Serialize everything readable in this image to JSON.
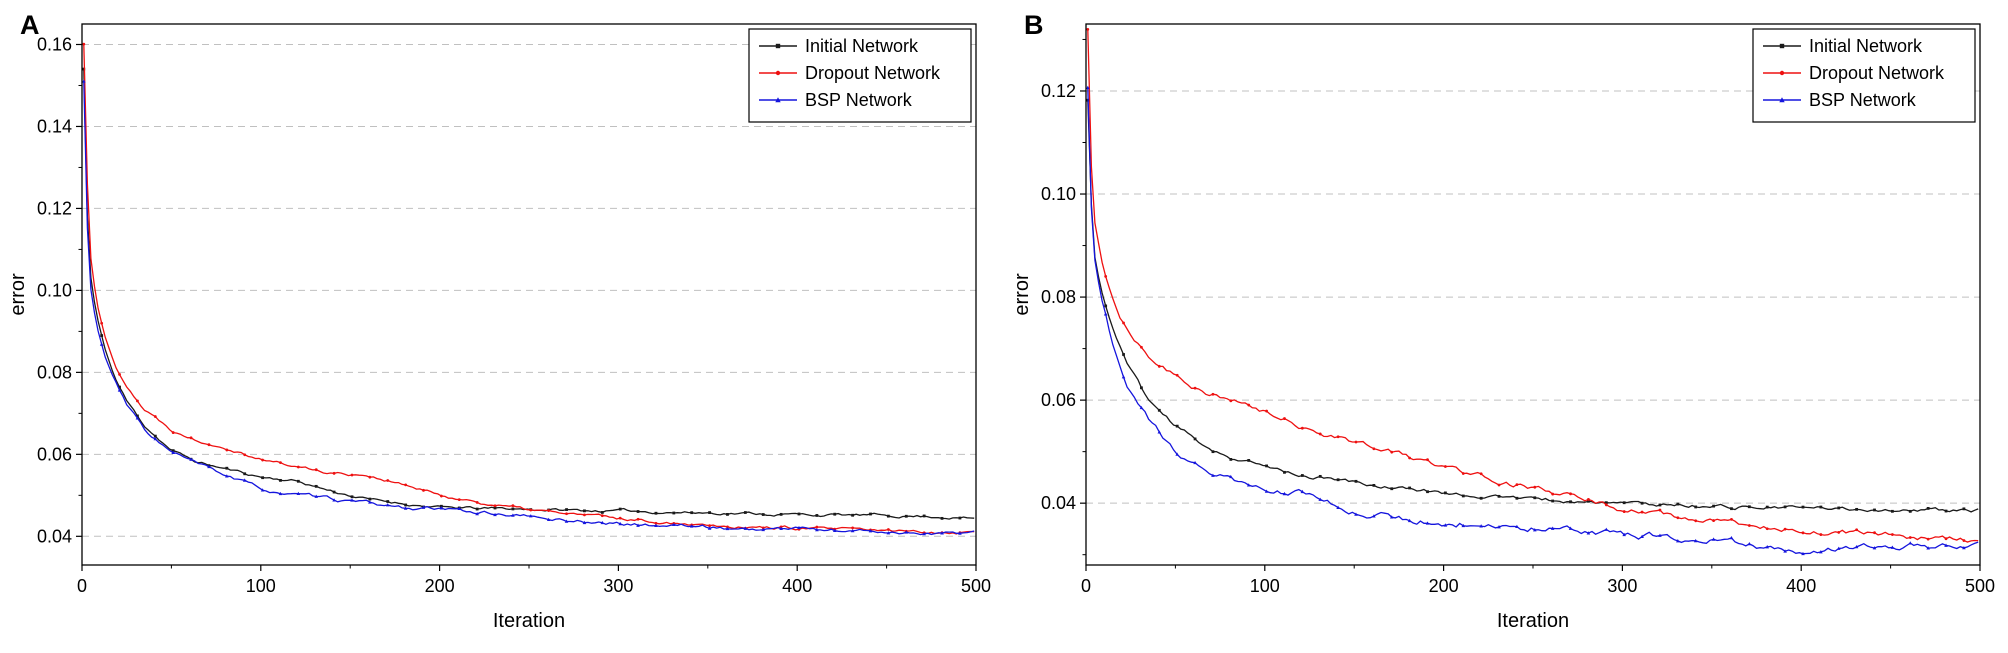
{
  "figure": {
    "background": "#ffffff",
    "panel_labels": [
      "A",
      "B"
    ]
  },
  "chart_data": [
    {
      "type": "line",
      "panel_label": "A",
      "xlabel": "Iteration",
      "ylabel": "error",
      "xlim": [
        0,
        500
      ],
      "ylim": [
        0.033,
        0.165
      ],
      "xticks": [
        0,
        100,
        200,
        300,
        400,
        500
      ],
      "yticks": [
        0.04,
        0.06,
        0.08,
        0.1,
        0.12,
        0.14,
        0.16
      ],
      "grid": "horizontal-dashed",
      "grid_color": "#c0c0c0",
      "legend_position": "top-right",
      "series": [
        {
          "name": "Initial Network",
          "color": "#1a1a1a",
          "marker": "square",
          "seed": 11,
          "noise": 0.00045,
          "x": [
            1,
            3,
            5,
            8,
            12,
            18,
            25,
            35,
            50,
            65,
            80,
            100,
            120,
            140,
            160,
            180,
            200,
            220,
            240,
            260,
            280,
            300,
            320,
            340,
            360,
            380,
            400,
            420,
            440,
            460,
            480,
            500
          ],
          "y": [
            0.154,
            0.118,
            0.103,
            0.094,
            0.087,
            0.079,
            0.073,
            0.067,
            0.061,
            0.058,
            0.0565,
            0.0545,
            0.0535,
            0.051,
            0.049,
            0.048,
            0.047,
            0.0468,
            0.0467,
            0.0465,
            0.0463,
            0.0462,
            0.046,
            0.0458,
            0.0457,
            0.0455,
            0.0453,
            0.0452,
            0.0451,
            0.045,
            0.0448,
            0.0443
          ]
        },
        {
          "name": "Dropout Network",
          "color": "#ee1111",
          "marker": "circle",
          "seed": 22,
          "noise": 0.0005,
          "x": [
            1,
            3,
            5,
            8,
            12,
            18,
            25,
            35,
            50,
            65,
            80,
            100,
            120,
            140,
            160,
            180,
            200,
            220,
            240,
            260,
            280,
            300,
            320,
            340,
            360,
            380,
            400,
            420,
            440,
            460,
            480,
            500
          ],
          "y": [
            0.16,
            0.126,
            0.108,
            0.098,
            0.09,
            0.082,
            0.077,
            0.071,
            0.066,
            0.0635,
            0.062,
            0.059,
            0.057,
            0.0555,
            0.055,
            0.0525,
            0.05,
            0.0485,
            0.047,
            0.046,
            0.0452,
            0.0443,
            0.0437,
            0.0432,
            0.0427,
            0.0422,
            0.042,
            0.0417,
            0.0414,
            0.0412,
            0.0411,
            0.041
          ]
        },
        {
          "name": "BSP Network",
          "color": "#1515dd",
          "marker": "triangle",
          "seed": 33,
          "noise": 0.00055,
          "x": [
            1,
            3,
            5,
            8,
            12,
            18,
            25,
            35,
            50,
            65,
            80,
            100,
            120,
            140,
            160,
            180,
            200,
            220,
            240,
            260,
            280,
            300,
            320,
            340,
            360,
            380,
            400,
            420,
            440,
            460,
            480,
            500
          ],
          "y": [
            0.151,
            0.115,
            0.1,
            0.092,
            0.085,
            0.078,
            0.072,
            0.066,
            0.0605,
            0.0575,
            0.055,
            0.0515,
            0.05,
            0.049,
            0.048,
            0.047,
            0.0465,
            0.046,
            0.0452,
            0.0443,
            0.0437,
            0.043,
            0.0427,
            0.0426,
            0.042,
            0.0417,
            0.042,
            0.0415,
            0.0412,
            0.041,
            0.0408,
            0.0407
          ]
        }
      ]
    },
    {
      "type": "line",
      "panel_label": "B",
      "xlabel": "Iteration",
      "ylabel": "error",
      "xlim": [
        0,
        500
      ],
      "ylim": [
        0.028,
        0.133
      ],
      "xticks": [
        0,
        100,
        200,
        300,
        400,
        500
      ],
      "yticks": [
        0.04,
        0.06,
        0.08,
        0.1,
        0.12
      ],
      "grid": "horizontal-dashed",
      "grid_color": "#c0c0c0",
      "legend_position": "top-right",
      "series": [
        {
          "name": "Initial Network",
          "color": "#1a1a1a",
          "marker": "square",
          "seed": 44,
          "noise": 0.0005,
          "x": [
            1,
            3,
            5,
            8,
            12,
            18,
            25,
            35,
            50,
            65,
            80,
            100,
            120,
            140,
            160,
            180,
            200,
            220,
            240,
            260,
            280,
            300,
            320,
            340,
            360,
            380,
            400,
            420,
            440,
            460,
            480,
            500
          ],
          "y": [
            0.118,
            0.098,
            0.088,
            0.082,
            0.077,
            0.071,
            0.066,
            0.06,
            0.055,
            0.0515,
            0.049,
            0.047,
            0.0455,
            0.0445,
            0.0435,
            0.0428,
            0.042,
            0.0415,
            0.041,
            0.0405,
            0.0402,
            0.0399,
            0.0397,
            0.0396,
            0.0394,
            0.0392,
            0.039,
            0.0389,
            0.0388,
            0.0387,
            0.0386,
            0.0385
          ]
        },
        {
          "name": "Dropout Network",
          "color": "#ee1111",
          "marker": "circle",
          "seed": 55,
          "noise": 0.0007,
          "x": [
            1,
            3,
            5,
            8,
            12,
            18,
            25,
            35,
            50,
            65,
            80,
            100,
            120,
            140,
            160,
            180,
            200,
            220,
            240,
            260,
            280,
            300,
            320,
            340,
            360,
            380,
            400,
            420,
            440,
            460,
            480,
            500
          ],
          "y": [
            0.132,
            0.105,
            0.094,
            0.088,
            0.083,
            0.077,
            0.073,
            0.069,
            0.065,
            0.062,
            0.06,
            0.0575,
            0.055,
            0.053,
            0.051,
            0.049,
            0.047,
            0.0455,
            0.0438,
            0.042,
            0.0405,
            0.039,
            0.0378,
            0.0368,
            0.036,
            0.0355,
            0.035,
            0.0345,
            0.034,
            0.0336,
            0.0331,
            0.0326
          ]
        },
        {
          "name": "BSP Network",
          "color": "#1515dd",
          "marker": "triangle",
          "seed": 66,
          "noise": 0.0008,
          "x": [
            1,
            3,
            5,
            8,
            12,
            18,
            25,
            35,
            50,
            65,
            80,
            100,
            120,
            140,
            160,
            180,
            200,
            220,
            240,
            260,
            280,
            300,
            320,
            340,
            360,
            380,
            400,
            420,
            440,
            460,
            480,
            500
          ],
          "y": [
            0.121,
            0.098,
            0.088,
            0.081,
            0.075,
            0.068,
            0.062,
            0.056,
            0.05,
            0.0475,
            0.0445,
            0.0425,
            0.042,
            0.0395,
            0.038,
            0.037,
            0.0365,
            0.036,
            0.0355,
            0.035,
            0.0345,
            0.034,
            0.0335,
            0.033,
            0.0325,
            0.0315,
            0.031,
            0.0313,
            0.0318,
            0.0317,
            0.0316,
            0.032
          ]
        }
      ]
    }
  ]
}
